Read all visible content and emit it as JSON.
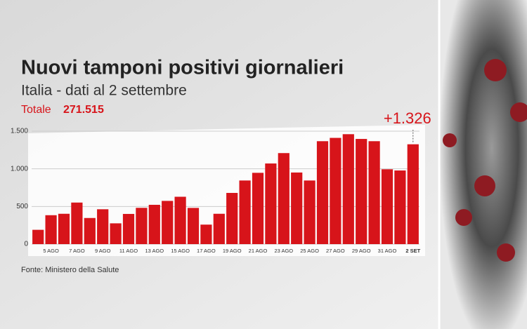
{
  "chart_data": {
    "type": "bar",
    "title": "Nuovi tamponi positivi giornalieri",
    "subtitle": "Italia - dati al 2 settembre",
    "total_label": "Totale",
    "total_value": "271.515",
    "source": "Fonte: Ministero della Salute",
    "categories": [
      null,
      "5 AGO",
      null,
      "7 AGO",
      null,
      "9 AGO",
      null,
      "11 AGO",
      null,
      "13 AGO",
      null,
      "15 AGO",
      null,
      "17 AGO",
      null,
      "19 AGO",
      null,
      "21 AGO",
      null,
      "23 AGO",
      null,
      "25 AGO",
      null,
      "27 AGO",
      null,
      "29 AGO",
      null,
      "31 AGO",
      null,
      "2 SET"
    ],
    "values": [
      190,
      384,
      403,
      552,
      347,
      463,
      276,
      401,
      482,
      522,
      574,
      629,
      481,
      259,
      403,
      680,
      845,
      947,
      1071,
      1209,
      951,
      845,
      1367,
      1411,
      1460,
      1397,
      1367,
      994,
      978,
      1326
    ],
    "value_labels": [
      null,
      null,
      null,
      null,
      null,
      null,
      null,
      null,
      null,
      null,
      null,
      null,
      null,
      null,
      null,
      null,
      null,
      null,
      null,
      null,
      null,
      null,
      null,
      null,
      null,
      null,
      null,
      null,
      null,
      "+1.326"
    ],
    "color": "#d7141a",
    "ylim": [
      0,
      1500
    ],
    "yticks": [
      0,
      500,
      {
        "value": 1000,
        "label": "1.000"
      },
      {
        "value": 1500,
        "label": "1.500"
      }
    ],
    "grid": true
  }
}
